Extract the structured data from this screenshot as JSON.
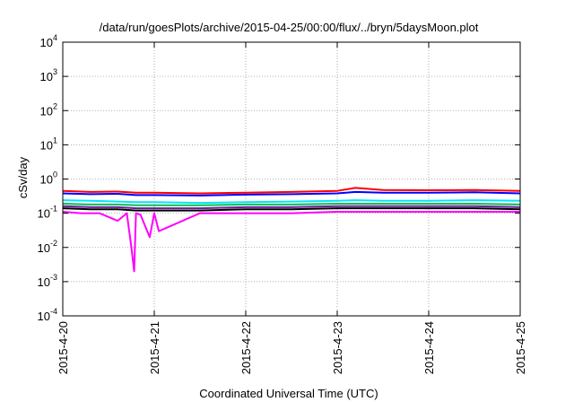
{
  "chart_data": {
    "type": "line",
    "title": "/data/run/goesPlots/archive/2015-04-25/00:00/flux/../bryn/5daysMoon.plot",
    "xlabel": "Coordinated Universal Time (UTC)",
    "ylabel": "cSv/day",
    "y_scale": "log",
    "ylim": [
      0.0001,
      10000
    ],
    "y_ticks": [
      {
        "base": "10",
        "exp": "-4",
        "value": 0.0001
      },
      {
        "base": "10",
        "exp": "-3",
        "value": 0.001
      },
      {
        "base": "10",
        "exp": "-2",
        "value": 0.01
      },
      {
        "base": "10",
        "exp": "-1",
        "value": 0.1
      },
      {
        "base": "10",
        "exp": "0",
        "value": 1
      },
      {
        "base": "10",
        "exp": "1",
        "value": 10
      },
      {
        "base": "10",
        "exp": "2",
        "value": 100
      },
      {
        "base": "10",
        "exp": "3",
        "value": 1000
      },
      {
        "base": "10",
        "exp": "4",
        "value": 10000
      }
    ],
    "xlim": [
      "2015-04-20",
      "2015-04-25"
    ],
    "x_ticks": [
      "2015-4-20",
      "2015-4-21",
      "2015-4-22",
      "2015-4-23",
      "2015-4-24",
      "2015-4-25"
    ],
    "grid": true,
    "series": [
      {
        "color": "#ff0000",
        "x": [
          0,
          0.3,
          0.6,
          0.8,
          1.0,
          1.5,
          2.0,
          2.5,
          3.0,
          3.2,
          3.5,
          4.0,
          4.5,
          5.0
        ],
        "values": [
          0.45,
          0.42,
          0.43,
          0.4,
          0.4,
          0.38,
          0.4,
          0.42,
          0.45,
          0.55,
          0.48,
          0.47,
          0.48,
          0.45
        ]
      },
      {
        "color": "#0000ff",
        "x": [
          0,
          0.3,
          0.6,
          0.8,
          1.0,
          1.5,
          2.0,
          2.5,
          3.0,
          3.2,
          3.5,
          4.0,
          4.5,
          5.0
        ],
        "values": [
          0.38,
          0.36,
          0.37,
          0.34,
          0.34,
          0.33,
          0.35,
          0.36,
          0.38,
          0.42,
          0.4,
          0.4,
          0.41,
          0.38
        ]
      },
      {
        "color": "#00e5ff",
        "x": [
          0,
          0.3,
          0.6,
          0.8,
          1.0,
          1.5,
          2.0,
          2.5,
          3.0,
          3.2,
          3.5,
          4.0,
          4.5,
          5.0
        ],
        "values": [
          0.24,
          0.23,
          0.22,
          0.21,
          0.21,
          0.2,
          0.21,
          0.22,
          0.23,
          0.24,
          0.23,
          0.23,
          0.24,
          0.23
        ]
      },
      {
        "color": "#00c050",
        "x": [
          0,
          0.3,
          0.6,
          0.8,
          1.0,
          1.5,
          2.0,
          2.5,
          3.0,
          3.2,
          3.5,
          4.0,
          4.5,
          5.0
        ],
        "values": [
          0.19,
          0.18,
          0.18,
          0.17,
          0.17,
          0.17,
          0.18,
          0.18,
          0.19,
          0.19,
          0.19,
          0.19,
          0.19,
          0.18
        ]
      },
      {
        "color": "#6a1b9a",
        "x": [
          0,
          0.3,
          0.6,
          0.8,
          1.0,
          1.5,
          2.0,
          2.5,
          3.0,
          3.2,
          3.5,
          4.0,
          4.5,
          5.0
        ],
        "values": [
          0.16,
          0.15,
          0.15,
          0.14,
          0.14,
          0.14,
          0.15,
          0.15,
          0.16,
          0.16,
          0.16,
          0.16,
          0.16,
          0.15
        ]
      },
      {
        "color": "#000000",
        "x": [
          0,
          0.3,
          0.6,
          0.8,
          1.0,
          1.5,
          2.0,
          2.5,
          3.0,
          3.2,
          3.5,
          4.0,
          4.5,
          5.0
        ],
        "values": [
          0.14,
          0.13,
          0.13,
          0.12,
          0.12,
          0.12,
          0.13,
          0.13,
          0.14,
          0.14,
          0.14,
          0.14,
          0.14,
          0.13
        ]
      },
      {
        "color": "#ff00ff",
        "x": [
          0,
          0.2,
          0.4,
          0.6,
          0.7,
          0.75,
          0.78,
          0.8,
          0.85,
          0.95,
          1.0,
          1.05,
          1.5,
          2.0,
          2.5,
          3.0,
          3.5,
          4.0,
          4.5,
          5.0
        ],
        "values": [
          0.11,
          0.1,
          0.1,
          0.06,
          0.1,
          0.01,
          0.002,
          0.1,
          0.09,
          0.02,
          0.1,
          0.03,
          0.1,
          0.1,
          0.1,
          0.11,
          0.11,
          0.11,
          0.11,
          0.11
        ]
      }
    ]
  }
}
